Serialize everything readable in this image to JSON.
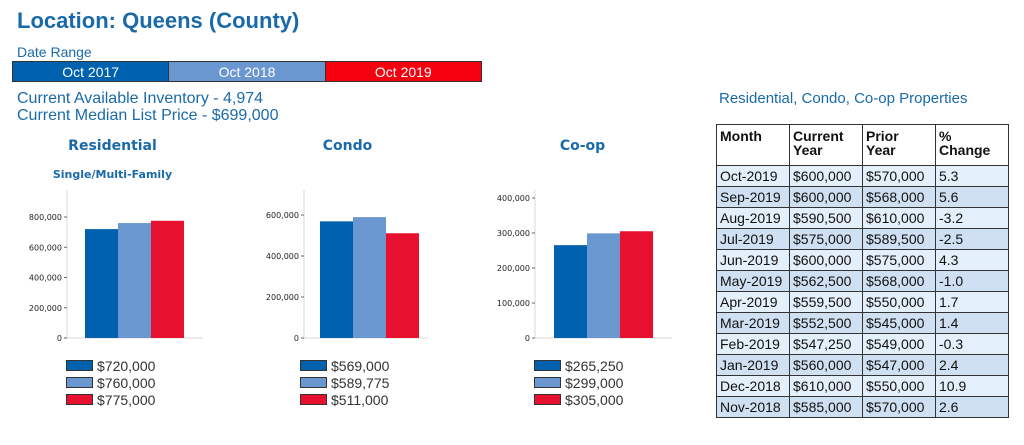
{
  "header": {
    "title": "Location: Queens (County)",
    "date_range_label": "Date Range",
    "date_range": [
      {
        "label": "Oct 2017",
        "color": "#0061ae"
      },
      {
        "label": "Oct 2018",
        "color": "#6b97d1"
      },
      {
        "label": "Oct 2019",
        "color": "#f5000e"
      }
    ],
    "inventory": "Current Available Inventory - 4,974",
    "median_price": "Current Median List Price - $699,000"
  },
  "colors": {
    "oct2017": "#0061ae",
    "oct2018": "#6b97d1",
    "oct2019": "#e8102f",
    "accent": "#1a6aaa"
  },
  "chart_data": [
    {
      "type": "bar",
      "title": "Residential",
      "subtitle": "Single/Multi-Family",
      "categories": [
        "Oct 2017",
        "Oct 2018",
        "Oct 2019"
      ],
      "values": [
        720000,
        760000,
        775000
      ],
      "legend": [
        "$720,000",
        "$760,000",
        "$775,000"
      ],
      "yticks": [
        0,
        200000,
        400000,
        600000,
        800000
      ],
      "ytick_labels": [
        "0",
        "200,000",
        "400,000",
        "600,000",
        "800,000"
      ],
      "ylim": [
        0,
        900000
      ],
      "xlabel": "",
      "ylabel": ""
    },
    {
      "type": "bar",
      "title": "Condo",
      "subtitle": "",
      "categories": [
        "Oct 2017",
        "Oct 2018",
        "Oct 2019"
      ],
      "values": [
        569000,
        589775,
        511000
      ],
      "legend": [
        "$569,000",
        "$589,775",
        "$511,000"
      ],
      "yticks": [
        0,
        200000,
        400000,
        600000
      ],
      "ytick_labels": [
        "0",
        "200,000",
        "400,000",
        "600,000"
      ],
      "ylim": [
        0,
        650000
      ],
      "xlabel": "",
      "ylabel": ""
    },
    {
      "type": "bar",
      "title": "Co-op",
      "subtitle": "",
      "categories": [
        "Oct 2017",
        "Oct 2018",
        "Oct 2019"
      ],
      "values": [
        265250,
        299000,
        305000
      ],
      "legend": [
        "$265,250",
        "$299,000",
        "$305,000"
      ],
      "yticks": [
        0,
        100000,
        200000,
        300000,
        400000
      ],
      "ytick_labels": [
        "0",
        "100,000",
        "200,000",
        "300,000",
        "400,000"
      ],
      "ylim": [
        0,
        400000
      ],
      "xlabel": "",
      "ylabel": ""
    }
  ],
  "table": {
    "title": "Residential, Condo, Co-op Properties",
    "headers": [
      [
        "Month"
      ],
      [
        "Current",
        "Year"
      ],
      [
        "Prior",
        "Year"
      ],
      [
        "%",
        "Change"
      ]
    ],
    "rows": [
      [
        "Oct-2019",
        "$600,000",
        "$570,000",
        "5.3"
      ],
      [
        "Sep-2019",
        "$600,000",
        "$568,000",
        "5.6"
      ],
      [
        "Aug-2019",
        "$590,500",
        "$610,000",
        "-3.2"
      ],
      [
        "Jul-2019",
        "$575,000",
        "$589,500",
        "-2.5"
      ],
      [
        "Jun-2019",
        "$600,000",
        "$575,000",
        "4.3"
      ],
      [
        "May-2019",
        "$562,500",
        "$568,000",
        "-1.0"
      ],
      [
        "Apr-2019",
        "$559,500",
        "$550,000",
        "1.7"
      ],
      [
        "Mar-2019",
        "$552,500",
        "$545,000",
        "1.4"
      ],
      [
        "Feb-2019",
        "$547,250",
        "$549,000",
        "-0.3"
      ],
      [
        "Jan-2019",
        "$560,000",
        "$547,000",
        "2.4"
      ],
      [
        "Dec-2018",
        "$610,000",
        "$550,000",
        "10.9"
      ],
      [
        "Nov-2018",
        "$585,000",
        "$570,000",
        "2.6"
      ]
    ]
  }
}
